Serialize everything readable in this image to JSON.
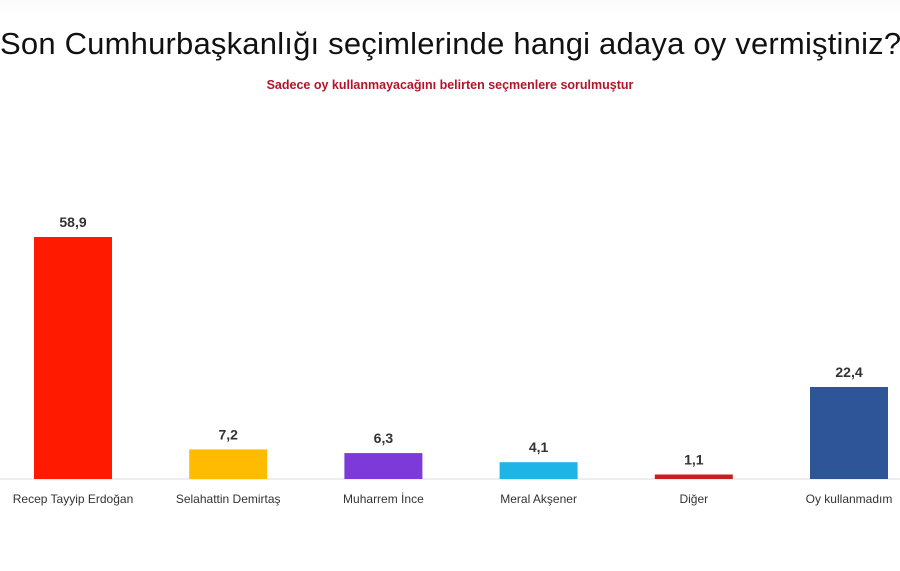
{
  "chart_data": {
    "type": "bar",
    "title": "Son Cumhurbaşkanlığı seçimlerinde hangi adaya oy vermiştiniz?",
    "subtitle": "Sadece oy kullanmayacağını belirten seçmenlere sorulmuştur",
    "categories": [
      "Recep Tayyip Erdoğan",
      "Selahattin Demirtaş",
      "Muharrem İnce",
      "Meral Akşener",
      "Diğer",
      "Oy kullanmadım"
    ],
    "values": [
      58.9,
      7.2,
      6.3,
      4.1,
      1.1,
      22.4
    ],
    "value_labels": [
      "58,9",
      "7,2",
      "6,3",
      "4,1",
      "1,1",
      "22,4"
    ],
    "colors": [
      "#ff1a00",
      "#ffbb00",
      "#7d3ad9",
      "#1fb3e8",
      "#c81e1e",
      "#2e5597"
    ],
    "ylim": [
      0,
      58.9
    ],
    "xlabel": "",
    "ylabel": "",
    "grid": false,
    "legend": "none"
  }
}
